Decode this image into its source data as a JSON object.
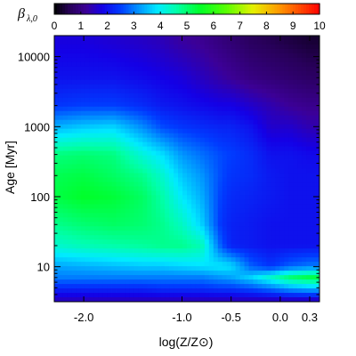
{
  "chart_data": {
    "type": "heatmap",
    "title": "",
    "xlabel": "log(Z/Z⊙)",
    "ylabel": "Age [Myr]",
    "colorbar": {
      "label_main": "β",
      "label_sub": "λ,0",
      "range": [
        0,
        10
      ],
      "ticks": [
        "0",
        "1",
        "2",
        "3",
        "4",
        "5",
        "6",
        "7",
        "8",
        "9",
        "10"
      ],
      "colormap": "rainbow (black-purple-blue-cyan-green-yellow-red)"
    },
    "x_ticks": [
      {
        "value": -2.0,
        "label": "-2.0"
      },
      {
        "value": -1.0,
        "label": "-1.0"
      },
      {
        "value": -0.5,
        "label": "-0.5"
      },
      {
        "value": 0.0,
        "label": "0.0"
      },
      {
        "value": 0.3,
        "label": "0.3"
      }
    ],
    "y_ticks": [
      {
        "value": 10,
        "label": "10"
      },
      {
        "value": 100,
        "label": "100"
      },
      {
        "value": 1000,
        "label": "1000"
      },
      {
        "value": 10000,
        "label": "10000"
      }
    ],
    "x_range": [
      -2.3,
      0.4
    ],
    "y_range_log10": [
      0.5,
      4.3
    ],
    "y_scale": "log",
    "grid": false,
    "x": [
      -2.3,
      -2.0,
      -1.7,
      -1.4,
      -1.2,
      -1.0,
      -0.8,
      -0.6,
      -0.5,
      -0.3,
      -0.1,
      0.1,
      0.3
    ],
    "y": [
      3.3,
      5,
      7,
      10,
      20,
      40,
      100,
      200,
      400,
      1000,
      2000,
      5000,
      20000
    ],
    "z": [
      [
        1.5,
        1.5,
        1.5,
        1.5,
        1.5,
        1.5,
        1.5,
        1.5,
        1.5,
        1.5,
        1.5,
        1.5,
        1.5
      ],
      [
        2.3,
        2.3,
        2.3,
        2.3,
        2.4,
        2.4,
        2.4,
        2.5,
        2.5,
        2.7,
        3.0,
        3.4,
        3.6
      ],
      [
        3.0,
        3.0,
        3.0,
        3.0,
        3.0,
        3.0,
        3.0,
        3.2,
        3.3,
        3.7,
        4.3,
        5.0,
        5.3
      ],
      [
        3.3,
        3.4,
        3.5,
        3.6,
        3.6,
        3.7,
        3.8,
        3.9,
        3.8,
        2.8,
        2.4,
        2.8,
        3.0
      ],
      [
        4.3,
        4.5,
        4.6,
        4.7,
        4.8,
        4.8,
        4.5,
        2.7,
        2.2,
        2.1,
        2.0,
        2.0,
        2.0
      ],
      [
        4.8,
        5.0,
        5.1,
        5.0,
        4.8,
        4.4,
        3.7,
        2.4,
        2.2,
        2.1,
        2.0,
        2.0,
        2.0
      ],
      [
        5.3,
        5.5,
        5.4,
        5.1,
        4.6,
        3.9,
        3.4,
        2.5,
        2.3,
        2.2,
        2.1,
        2.0,
        2.0
      ],
      [
        5.2,
        5.3,
        5.1,
        4.8,
        4.3,
        3.6,
        3.2,
        2.6,
        2.4,
        2.3,
        2.1,
        2.0,
        2.0
      ],
      [
        4.9,
        5.0,
        4.9,
        4.2,
        3.8,
        3.2,
        2.9,
        2.6,
        2.5,
        2.3,
        2.0,
        2.0,
        1.9
      ],
      [
        3.4,
        3.6,
        3.7,
        3.1,
        2.6,
        2.4,
        2.3,
        2.2,
        2.2,
        2.0,
        1.6,
        1.6,
        1.4
      ],
      [
        2.4,
        2.5,
        2.5,
        2.3,
        2.1,
        2.0,
        1.9,
        1.8,
        1.8,
        1.6,
        1.4,
        1.2,
        1.1
      ],
      [
        2.0,
        2.0,
        2.0,
        1.9,
        1.8,
        1.7,
        1.5,
        1.3,
        1.2,
        1.0,
        0.9,
        0.8,
        0.7
      ],
      [
        1.7,
        1.7,
        1.6,
        1.5,
        1.4,
        1.2,
        1.1,
        0.9,
        0.8,
        0.6,
        0.5,
        0.4,
        0.3
      ]
    ]
  }
}
